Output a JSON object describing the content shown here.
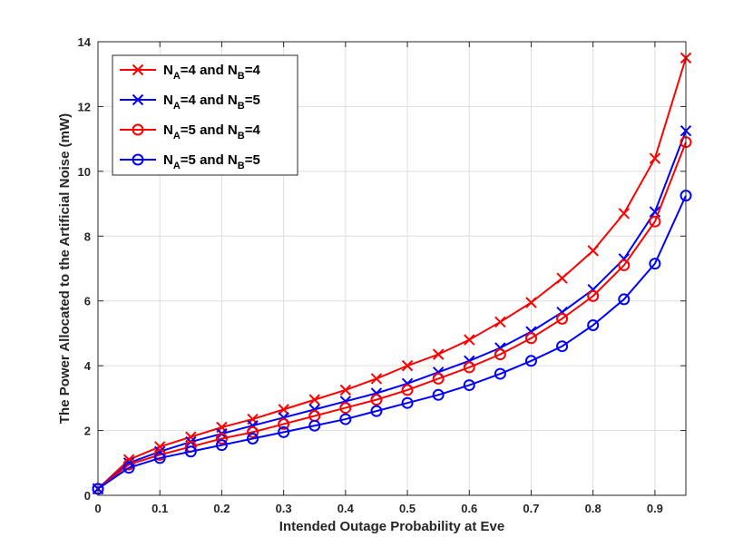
{
  "chart_data": {
    "type": "line",
    "title": "",
    "xlabel": "Intended Outage Probability at Eve",
    "ylabel": "The Power Allocated to the Artificial Noise (mW)",
    "xlim": [
      0,
      0.95
    ],
    "ylim": [
      0,
      14
    ],
    "grid": true,
    "legend_position": "top-left",
    "x_ticks": [
      0,
      0.1,
      0.2,
      0.3,
      0.4,
      0.5,
      0.6,
      0.7,
      0.8,
      0.9
    ],
    "x_tick_labels": [
      "0",
      "0.1",
      "0.2",
      "0.3",
      "0.4",
      "0.5",
      "0.6",
      "0.7",
      "0.8",
      "0.9"
    ],
    "y_ticks": [
      0,
      2,
      4,
      6,
      8,
      10,
      12,
      14
    ],
    "y_tick_labels": [
      "0",
      "2",
      "4",
      "6",
      "8",
      "10",
      "12",
      "14"
    ],
    "x": [
      0,
      0.05,
      0.1,
      0.15,
      0.2,
      0.25,
      0.3,
      0.35,
      0.4,
      0.45,
      0.5,
      0.55,
      0.6,
      0.65,
      0.7,
      0.75,
      0.8,
      0.85,
      0.9,
      0.95
    ],
    "series": [
      {
        "name": "N_A=4 and N_B=4",
        "legend": {
          "p1": "N",
          "s1": "A",
          "m": "=4 and N",
          "s2": "B",
          "e": "=4"
        },
        "color": "#ff0000",
        "marker": "x",
        "values": [
          0.2,
          1.1,
          1.5,
          1.8,
          2.1,
          2.35,
          2.65,
          2.95,
          3.25,
          3.6,
          4.0,
          4.35,
          4.8,
          5.35,
          5.95,
          6.7,
          7.55,
          8.7,
          10.4,
          13.5
        ]
      },
      {
        "name": "N_A=4 and N_B=5",
        "legend": {
          "p1": "N",
          "s1": "A",
          "m": "=4 and N",
          "s2": "B",
          "e": "=5"
        },
        "color": "#0000ff",
        "marker": "x",
        "values": [
          0.2,
          1.0,
          1.35,
          1.65,
          1.9,
          2.15,
          2.4,
          2.65,
          2.9,
          3.15,
          3.45,
          3.8,
          4.15,
          4.55,
          5.05,
          5.65,
          6.35,
          7.3,
          8.75,
          11.25
        ]
      },
      {
        "name": "N_A=5 and N_B=4",
        "legend": {
          "p1": "N",
          "s1": "A",
          "m": "=5 and N",
          "s2": "B",
          "e": "=4"
        },
        "color": "#ff0000",
        "marker": "o",
        "values": [
          0.2,
          0.95,
          1.25,
          1.5,
          1.75,
          1.95,
          2.2,
          2.45,
          2.7,
          2.95,
          3.25,
          3.6,
          3.95,
          4.35,
          4.85,
          5.45,
          6.15,
          7.1,
          8.45,
          10.9
        ]
      },
      {
        "name": "N_A=5 and N_B=5",
        "legend": {
          "p1": "N",
          "s1": "A",
          "m": "=5 and N",
          "s2": "B",
          "e": "=5"
        },
        "color": "#0000ff",
        "marker": "o",
        "values": [
          0.2,
          0.85,
          1.15,
          1.35,
          1.55,
          1.75,
          1.95,
          2.15,
          2.35,
          2.6,
          2.85,
          3.1,
          3.4,
          3.75,
          4.15,
          4.6,
          5.25,
          6.05,
          7.15,
          9.25
        ]
      }
    ]
  }
}
